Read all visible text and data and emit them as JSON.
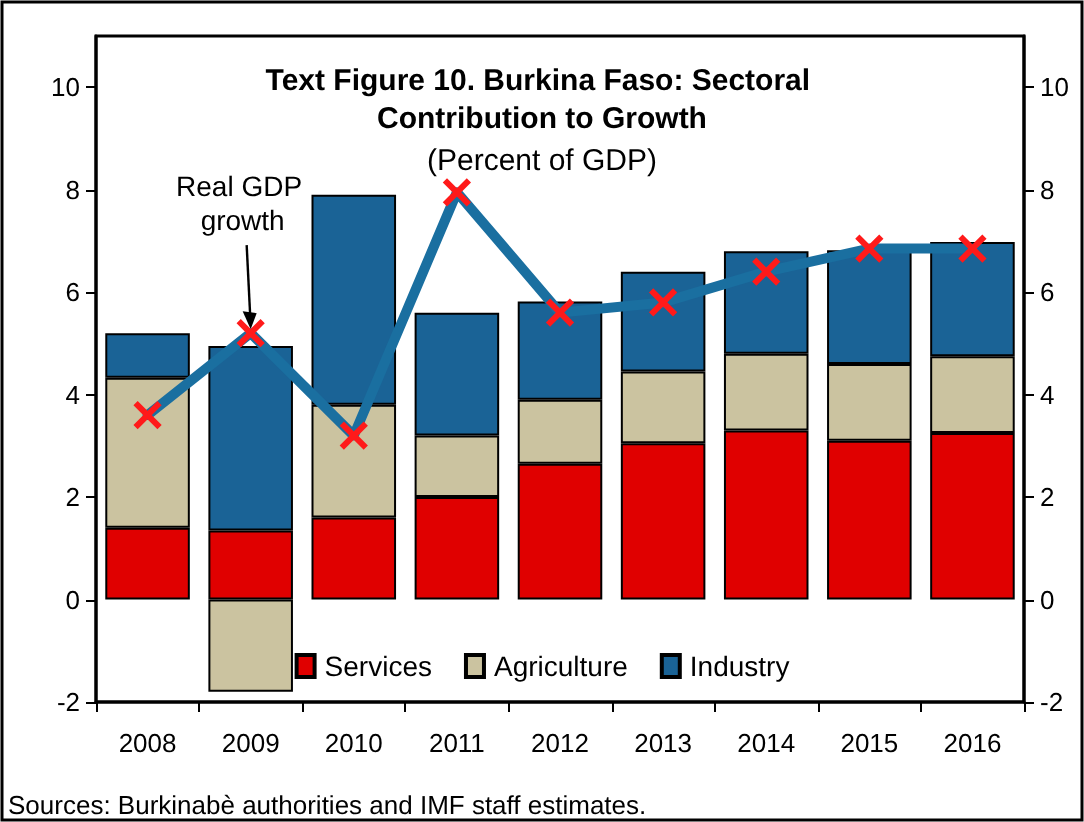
{
  "chart_data": {
    "type": "bar",
    "title": "Text Figure 10. Burkina Faso: Sectoral Contribution to Growth",
    "subtitle": "(Percent of GDP)",
    "categories": [
      "2008",
      "2009",
      "2010",
      "2011",
      "2012",
      "2013",
      "2014",
      "2015",
      "2016"
    ],
    "stacked": true,
    "series": [
      {
        "name": "Services",
        "color": "#e00000",
        "values": [
          1.4,
          1.35,
          1.6,
          2.0,
          2.65,
          3.05,
          3.3,
          3.1,
          3.25
        ]
      },
      {
        "name": "Agriculture",
        "color": "#cbc3a0",
        "values": [
          2.93,
          -1.8,
          2.2,
          1.2,
          1.25,
          1.4,
          1.5,
          1.5,
          1.5
        ]
      },
      {
        "name": "Industry",
        "color": "#1a6396",
        "values": [
          0.87,
          3.6,
          4.1,
          2.4,
          1.92,
          1.95,
          2.0,
          2.22,
          2.23
        ]
      },
      {
        "type": "line",
        "color": "#1a6fa0",
        "marker": "cross",
        "values": [
          3.6,
          5.2,
          3.2,
          7.95,
          5.6,
          5.8,
          6.4,
          6.85,
          6.85
        ]
      }
    ],
    "ylim": [
      -2,
      11
    ],
    "yticks": [
      -2,
      0,
      2,
      4,
      6,
      8,
      10
    ],
    "y2lim": [
      -2,
      11
    ],
    "y2ticks": [
      -2,
      0,
      2,
      4,
      6,
      8,
      10
    ],
    "legend": "bottom",
    "annotations": [
      {
        "text": "Real GDP growth",
        "x": "2009",
        "y": 5.2
      },
      "Sources: Burkinabè authorities and IMF staff estimates."
    ]
  }
}
